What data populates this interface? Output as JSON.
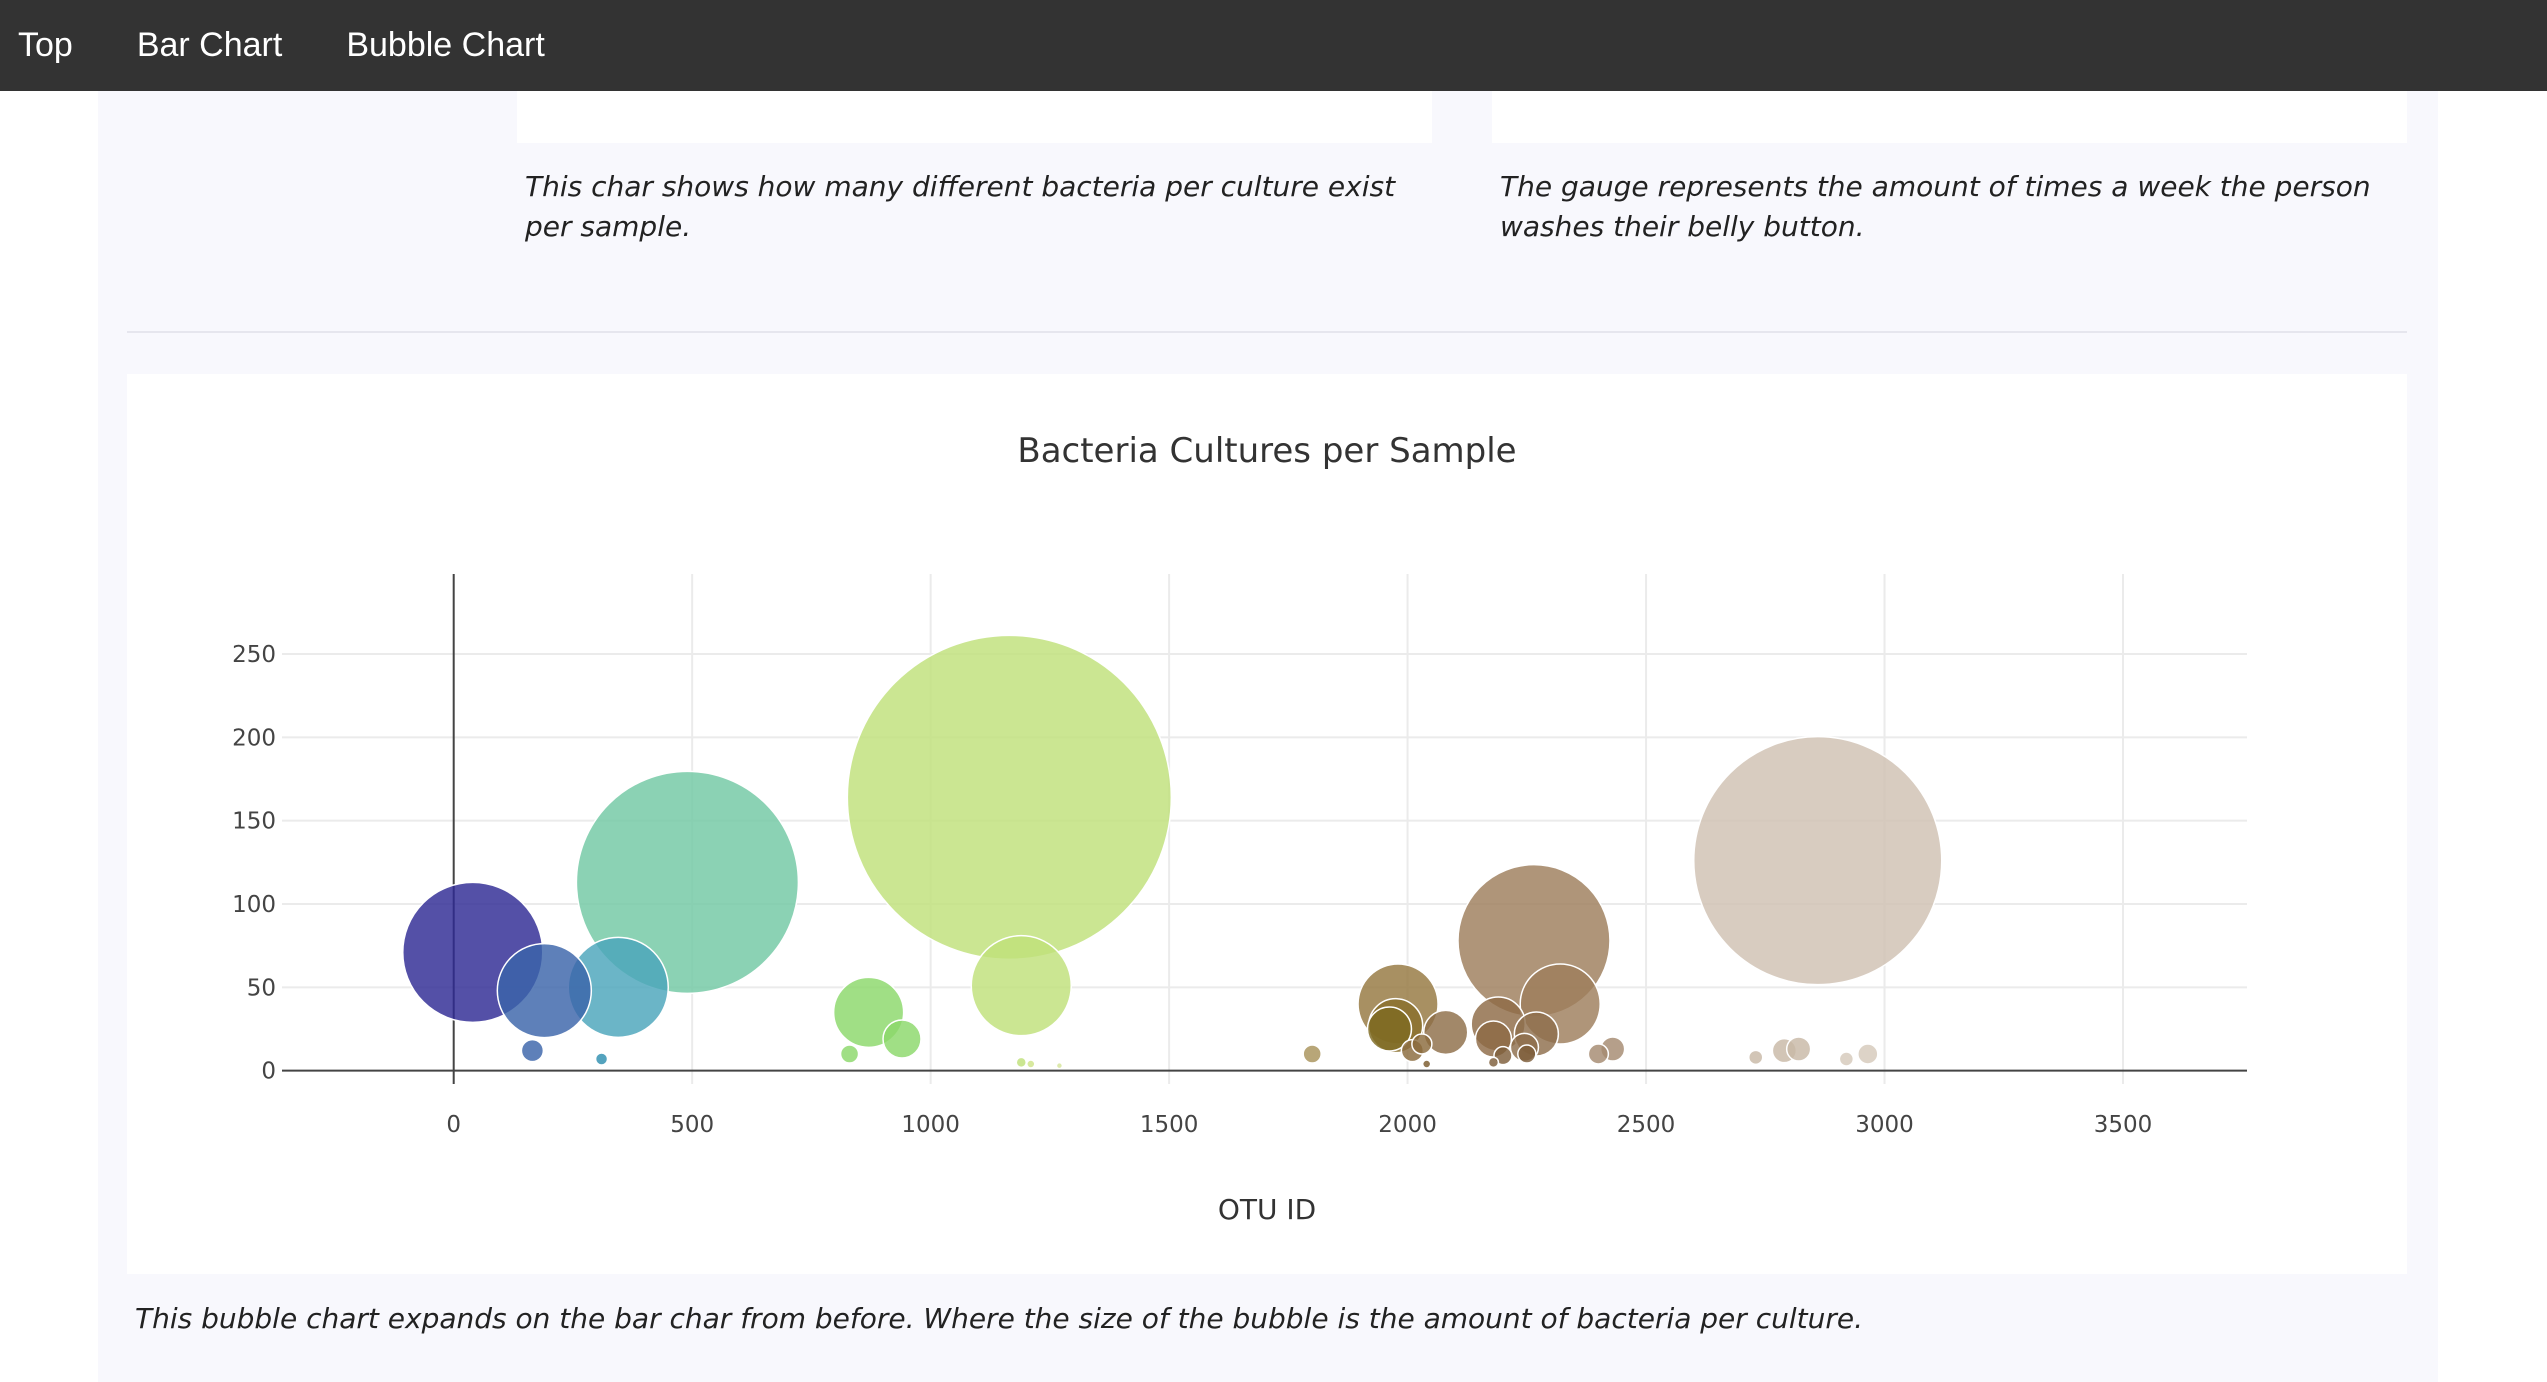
{
  "nav": {
    "items": [
      {
        "label": "Top"
      },
      {
        "label": "Bar Chart"
      },
      {
        "label": "Bubble Chart"
      }
    ]
  },
  "captions": {
    "bar_chart": "This char shows how many different bacteria per culture exist per sample.",
    "gauge": "The gauge represents the amount of times a week the person washes their belly button.",
    "bubble_chart": "This bubble chart expands on the bar char from before. Where the size of the bubble is the amount of bacteria per culture."
  },
  "chart_data": {
    "type": "scatter",
    "title": "Bacteria Cultures per Sample",
    "xlabel": "OTU ID",
    "ylabel": "",
    "xlim": [
      -360,
      3760
    ],
    "ylim": [
      -8,
      298
    ],
    "xticks": [
      0,
      500,
      1000,
      1500,
      2000,
      2500,
      3000,
      3500
    ],
    "yticks": [
      0,
      50,
      100,
      150,
      200,
      250
    ],
    "grid": true,
    "points": [
      {
        "x": 40,
        "y": 71,
        "r": 70,
        "color": "#2e2a94"
      },
      {
        "x": 190,
        "y": 48,
        "r": 47,
        "color": "#3a64aa"
      },
      {
        "x": 165,
        "y": 12,
        "r": 11,
        "color": "#3a64aa"
      },
      {
        "x": 345,
        "y": 50,
        "r": 50,
        "color": "#4aa5bb"
      },
      {
        "x": 310,
        "y": 7,
        "r": 6,
        "color": "#2e8fb0"
      },
      {
        "x": 490,
        "y": 113,
        "r": 111,
        "color": "#71c8a4"
      },
      {
        "x": 870,
        "y": 35,
        "r": 35,
        "color": "#8bd86a"
      },
      {
        "x": 940,
        "y": 19,
        "r": 19,
        "color": "#8bd86a"
      },
      {
        "x": 830,
        "y": 10,
        "r": 9,
        "color": "#8bd86a"
      },
      {
        "x": 1165,
        "y": 164,
        "r": 162,
        "color": "#bfe07a"
      },
      {
        "x": 1190,
        "y": 51,
        "r": 50,
        "color": "#bfe07a"
      },
      {
        "x": 1190,
        "y": 5,
        "r": 5,
        "color": "#bfe07a"
      },
      {
        "x": 1210,
        "y": 4,
        "r": 4,
        "color": "#cfe48a"
      },
      {
        "x": 1270,
        "y": 3,
        "r": 3,
        "color": "#d6e49a"
      },
      {
        "x": 1800,
        "y": 10,
        "r": 9,
        "color": "#a8925a"
      },
      {
        "x": 1980,
        "y": 40,
        "r": 40,
        "color": "#95773f"
      },
      {
        "x": 1975,
        "y": 27,
        "r": 27,
        "color": "#8a6f2c"
      },
      {
        "x": 1962,
        "y": 25,
        "r": 22,
        "color": "#7e6a22"
      },
      {
        "x": 2010,
        "y": 12,
        "r": 11,
        "color": "#8a6a3c"
      },
      {
        "x": 2030,
        "y": 16,
        "r": 10,
        "color": "#8a6a3c"
      },
      {
        "x": 2080,
        "y": 23,
        "r": 22,
        "color": "#8e6e48"
      },
      {
        "x": 2040,
        "y": 4,
        "r": 4,
        "color": "#7a5a2c"
      },
      {
        "x": 2190,
        "y": 28,
        "r": 27,
        "color": "#8e6a46"
      },
      {
        "x": 2180,
        "y": 19,
        "r": 18,
        "color": "#8e6a46"
      },
      {
        "x": 2200,
        "y": 9,
        "r": 9,
        "color": "#7e5e3a"
      },
      {
        "x": 2180,
        "y": 5,
        "r": 5,
        "color": "#7e5e3a"
      },
      {
        "x": 2265,
        "y": 78,
        "r": 76,
        "color": "#9d7e5c"
      },
      {
        "x": 2320,
        "y": 40,
        "r": 40,
        "color": "#9d7e5c"
      },
      {
        "x": 2270,
        "y": 22,
        "r": 22,
        "color": "#8e6e4c"
      },
      {
        "x": 2245,
        "y": 14,
        "r": 14,
        "color": "#8e6e4c"
      },
      {
        "x": 2250,
        "y": 10,
        "r": 9,
        "color": "#7e5e3a"
      },
      {
        "x": 2400,
        "y": 10,
        "r": 10,
        "color": "#a58a70"
      },
      {
        "x": 2430,
        "y": 13,
        "r": 12,
        "color": "#a58a70"
      },
      {
        "x": 2730,
        "y": 8,
        "r": 7,
        "color": "#c8b8a6"
      },
      {
        "x": 2790,
        "y": 12,
        "r": 12,
        "color": "#c8b8a6"
      },
      {
        "x": 2820,
        "y": 13,
        "r": 12,
        "color": "#c8b8a6"
      },
      {
        "x": 2860,
        "y": 126,
        "r": 124,
        "color": "#cfc1b2"
      },
      {
        "x": 2920,
        "y": 7,
        "r": 7,
        "color": "#d6c9bb"
      },
      {
        "x": 2965,
        "y": 10,
        "r": 10,
        "color": "#d6c9bb"
      }
    ]
  }
}
